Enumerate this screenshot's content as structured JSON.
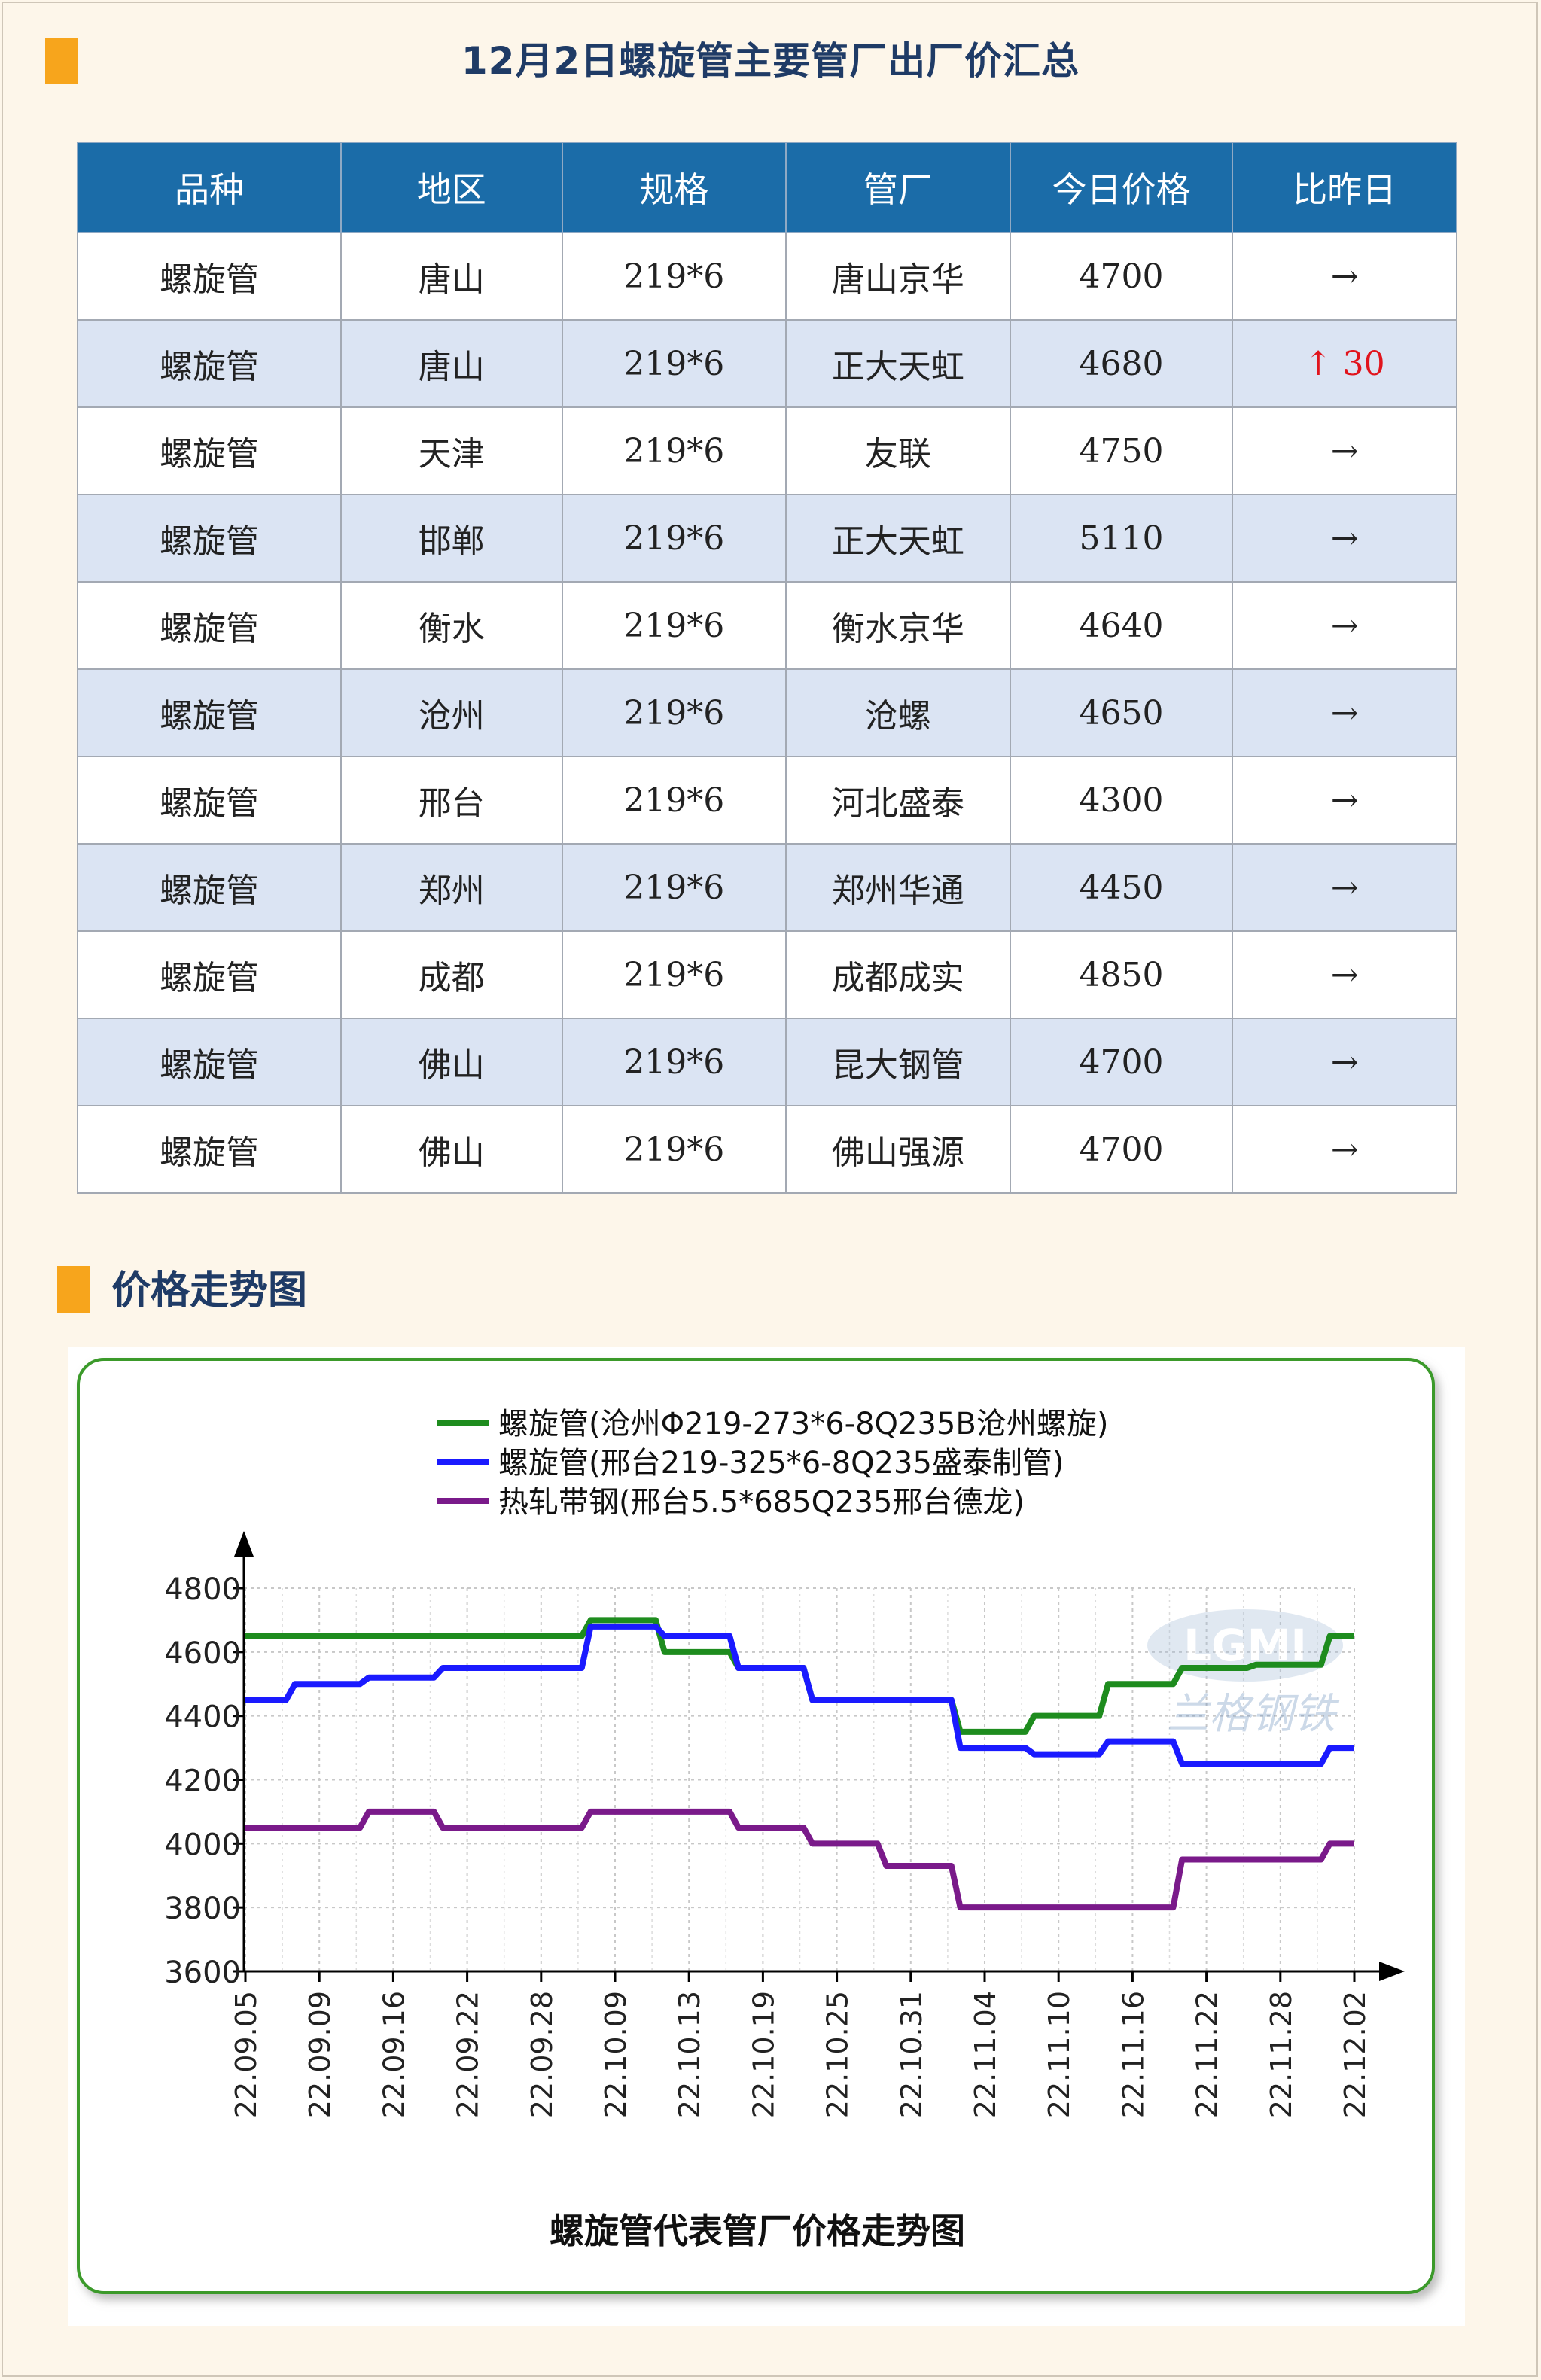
{
  "header": {
    "title": "12月2日螺旋管主要管厂出厂价汇总"
  },
  "table": {
    "columns": [
      "品种",
      "地区",
      "规格",
      "管厂",
      "今日价格",
      "比昨日"
    ],
    "rows": [
      [
        "螺旋管",
        "唐山",
        "219*6",
        "唐山京华",
        "4700",
        "→"
      ],
      [
        "螺旋管",
        "唐山",
        "219*6",
        "正大天虹",
        "4680",
        "↑ 30"
      ],
      [
        "螺旋管",
        "天津",
        "219*6",
        "友联",
        "4750",
        "→"
      ],
      [
        "螺旋管",
        "邯郸",
        "219*6",
        "正大天虹",
        "5110",
        "→"
      ],
      [
        "螺旋管",
        "衡水",
        "219*6",
        "衡水京华",
        "4640",
        "→"
      ],
      [
        "螺旋管",
        "沧州",
        "219*6",
        "沧螺",
        "4650",
        "→"
      ],
      [
        "螺旋管",
        "邢台",
        "219*6",
        "河北盛泰",
        "4300",
        "→"
      ],
      [
        "螺旋管",
        "郑州",
        "219*6",
        "郑州华通",
        "4450",
        "→"
      ],
      [
        "螺旋管",
        "成都",
        "219*6",
        "成都成实",
        "4850",
        "→"
      ],
      [
        "螺旋管",
        "佛山",
        "219*6",
        "昆大钢管",
        "4700",
        "→"
      ],
      [
        "螺旋管",
        "佛山",
        "219*6",
        "佛山强源",
        "4700",
        "→"
      ]
    ],
    "header_color": "#1b6ca8",
    "alt_row_color": "#dbe4f3",
    "up_color": "#e1141c"
  },
  "trend_section": {
    "title": "价格走势图"
  },
  "chart_data": {
    "type": "line",
    "title": "螺旋管代表管厂价格走势图",
    "xlabel": "",
    "ylabel": "",
    "ylim": [
      3600,
      4800
    ],
    "yticks": [
      3600,
      3800,
      4000,
      4200,
      4400,
      4600,
      4800
    ],
    "grid": true,
    "legend_position": "top",
    "x": [
      "22.09.05",
      "22.09.09",
      "22.09.16",
      "22.09.22",
      "22.09.28",
      "22.10.09",
      "22.10.13",
      "22.10.19",
      "22.10.25",
      "22.10.31",
      "22.11.04",
      "22.11.10",
      "22.11.16",
      "22.11.22",
      "22.11.28",
      "22.12.02"
    ],
    "watermark": [
      "LGMI",
      "兰格钢铁"
    ],
    "series": [
      {
        "name": "螺旋管(沧州Φ219-273*6-8Q235B沧州螺旋)",
        "color": "#1e8c1e",
        "values": [
          4650,
          4650,
          4650,
          4650,
          4650,
          4700,
          4600,
          4550,
          4450,
          4450,
          4350,
          4400,
          4500,
          4550,
          4560,
          4650
        ]
      },
      {
        "name": "螺旋管(邢台219-325*6-8Q235盛泰制管)",
        "color": "#1a1aff",
        "values": [
          4450,
          4500,
          4520,
          4550,
          4550,
          4680,
          4650,
          4550,
          4450,
          4450,
          4300,
          4280,
          4320,
          4250,
          4250,
          4300
        ]
      },
      {
        "name": "热轧带钢(邢台5.5*685Q235邢台德龙)",
        "color": "#7a1a8a",
        "values": [
          4050,
          4050,
          4100,
          4050,
          4050,
          4100,
          4100,
          4050,
          4000,
          3930,
          3800,
          3800,
          3800,
          3950,
          3950,
          4000
        ]
      }
    ]
  }
}
